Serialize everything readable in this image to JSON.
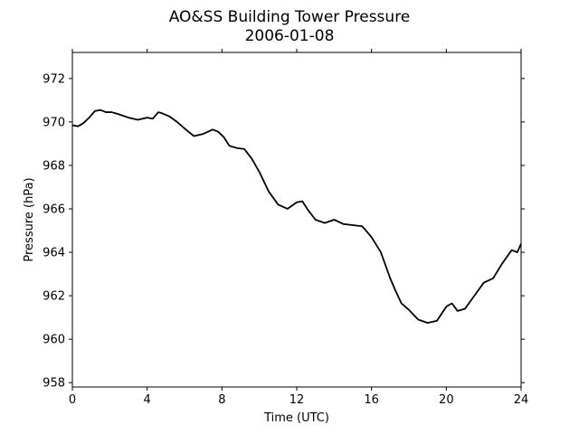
{
  "chart_data": {
    "type": "line",
    "title": "AO&SS Building Tower Pressure",
    "subtitle": "2006-01-08",
    "xlabel": "Time (UTC)",
    "ylabel": "Pressure (hPa)",
    "xlim": [
      0,
      24
    ],
    "ylim": [
      957.8,
      973.2
    ],
    "xticks": [
      0,
      4,
      8,
      12,
      16,
      20,
      24
    ],
    "yticks": [
      958,
      960,
      962,
      964,
      966,
      968,
      970,
      972
    ],
    "grid": false,
    "line_color": "#000000",
    "series": [
      {
        "x": [
          0,
          0.3,
          0.6,
          0.9,
          1.2,
          1.5,
          1.8,
          2.1,
          2.5,
          3.0,
          3.5,
          4.0,
          4.3,
          4.6,
          4.8,
          5.2,
          5.6,
          6.0,
          6.5,
          7.0,
          7.5,
          7.8,
          8.1,
          8.4,
          8.8,
          9.2,
          9.6,
          10.0,
          10.5,
          11.0,
          11.5,
          12.0,
          12.3,
          12.6,
          13.0,
          13.5,
          14.0,
          14.5,
          15.0,
          15.5,
          16.0,
          16.5,
          17.0,
          17.3,
          17.6,
          18.0,
          18.5,
          19.0,
          19.5,
          20.0,
          20.3,
          20.6,
          21.0,
          21.5,
          22.0,
          22.5,
          23.0,
          23.5,
          23.8,
          24.0
        ],
        "y": [
          969.85,
          969.8,
          969.95,
          970.2,
          970.5,
          970.55,
          970.45,
          970.45,
          970.35,
          970.2,
          970.1,
          970.2,
          970.15,
          970.45,
          970.4,
          970.25,
          970.0,
          969.7,
          969.35,
          969.45,
          969.65,
          969.55,
          969.3,
          968.9,
          968.8,
          968.75,
          968.3,
          967.7,
          966.8,
          966.2,
          966.0,
          966.3,
          966.35,
          965.95,
          965.5,
          965.35,
          965.5,
          965.3,
          965.25,
          965.2,
          964.7,
          964.0,
          962.8,
          962.2,
          961.65,
          961.35,
          960.9,
          960.75,
          960.85,
          961.5,
          961.65,
          961.3,
          961.4,
          962.0,
          962.6,
          962.8,
          963.5,
          964.1,
          964.0,
          964.4
        ]
      }
    ]
  }
}
